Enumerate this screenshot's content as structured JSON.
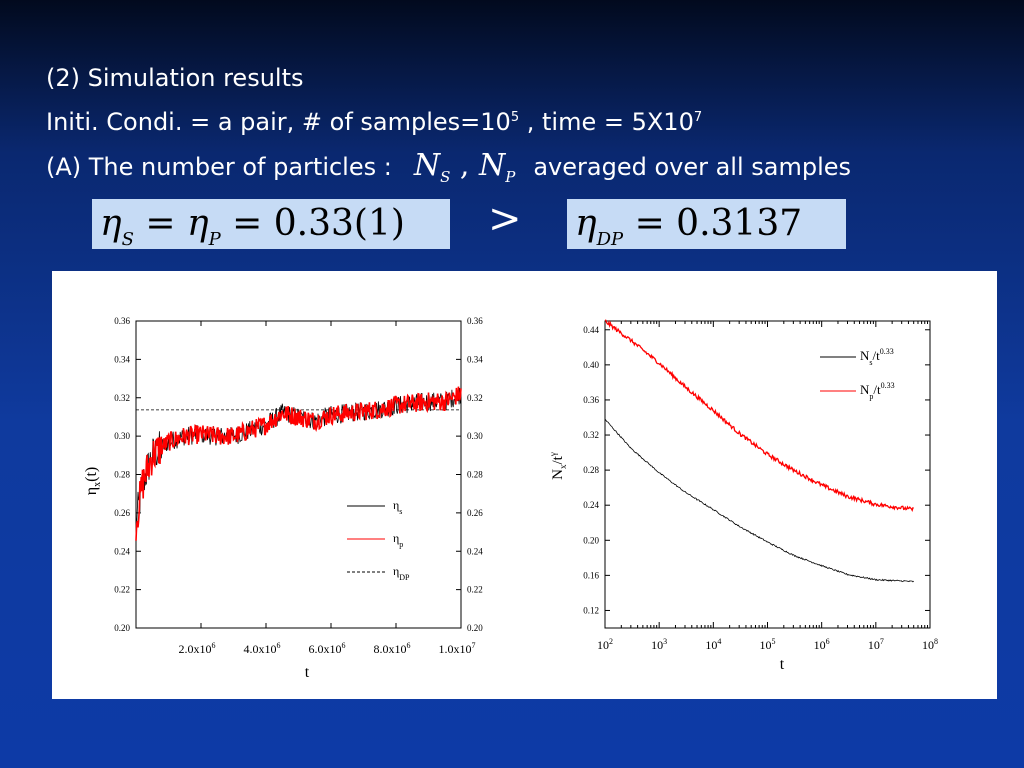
{
  "slide": {
    "line1": "(2) Simulation results",
    "line2_text": "Initi. Condi. = a pair, # of samples=10",
    "line2_sup1": "5",
    "line2_mid": " , time = 5X10",
    "line2_sup2": "7",
    "line3_prefix": "(A) The number of particles :",
    "line3_math_N": "N",
    "line3_sub_S": "S",
    "line3_comma": " , ",
    "line3_sub_P": "P",
    "line3_suffix": "averaged over all samples",
    "eq1": {
      "eta": "η",
      "sub_s": "S",
      "eq": " = ",
      "sub_p": "P",
      "value": " = 0.33(1)"
    },
    "comparator": ">",
    "eq2": {
      "eta": "η",
      "sub_dp": "DP",
      "value": " = 0.3137"
    }
  },
  "chart_data": [
    {
      "type": "line",
      "ylabel": "η_x(t)",
      "xlabel": "t",
      "xlim": [
        0,
        10000000
      ],
      "ylim": [
        0.2,
        0.36
      ],
      "y_ticks": [
        "0.20",
        "0.22",
        "0.24",
        "0.26",
        "0.28",
        "0.30",
        "0.32",
        "0.34",
        "0.36"
      ],
      "x_ticks": [
        {
          "value": 2000000,
          "mant": "2.0x10",
          "exp": "6"
        },
        {
          "value": 4000000,
          "mant": "4.0x10",
          "exp": "6"
        },
        {
          "value": 6000000,
          "mant": "6.0x10",
          "exp": "6"
        },
        {
          "value": 8000000,
          "mant": "8.0x10",
          "exp": "6"
        },
        {
          "value": 10000000,
          "mant": "1.0x10",
          "exp": "7"
        }
      ],
      "legend_position": "bottom-right",
      "legend": [
        {
          "base": "η",
          "sub": "s",
          "color": "#000000",
          "style": "solid"
        },
        {
          "base": "η",
          "sub": "p",
          "color": "#ff0000",
          "style": "solid"
        },
        {
          "base": "η",
          "sub": "DP",
          "color": "#000000",
          "style": "dashed"
        }
      ],
      "reference_line": {
        "name": "η_DP",
        "y": 0.3137
      },
      "series": [
        {
          "name": "η_s",
          "color": "#000000",
          "x": [
            0,
            200000,
            500000,
            1000000,
            1500000,
            2000000,
            2500000,
            3000000,
            3500000,
            4000000,
            4500000,
            5000000,
            5500000,
            6000000,
            6500000,
            7000000,
            7500000,
            8000000,
            8500000,
            9000000,
            9500000,
            10000000
          ],
          "y": [
            0.255,
            0.275,
            0.29,
            0.297,
            0.3,
            0.301,
            0.3,
            0.3,
            0.303,
            0.306,
            0.312,
            0.31,
            0.308,
            0.311,
            0.312,
            0.313,
            0.314,
            0.316,
            0.317,
            0.318,
            0.318,
            0.322
          ]
        },
        {
          "name": "η_p",
          "color": "#ff0000",
          "x": [
            0,
            200000,
            500000,
            1000000,
            1500000,
            2000000,
            2500000,
            3000000,
            3500000,
            4000000,
            4500000,
            5000000,
            5500000,
            6000000,
            6500000,
            7000000,
            7500000,
            8000000,
            8500000,
            9000000,
            9500000,
            10000000
          ],
          "y": [
            0.255,
            0.275,
            0.29,
            0.297,
            0.3,
            0.301,
            0.3,
            0.3,
            0.303,
            0.306,
            0.312,
            0.31,
            0.308,
            0.311,
            0.312,
            0.313,
            0.314,
            0.316,
            0.317,
            0.318,
            0.318,
            0.322
          ]
        }
      ]
    },
    {
      "type": "line",
      "x_scale": "log",
      "ylabel_base": "N",
      "ylabel_sub": "x",
      "ylabel_rest": "/t",
      "ylabel_sup": "γ",
      "xlabel": "t",
      "xlim": [
        100,
        100000000
      ],
      "ylim": [
        0.1,
        0.45
      ],
      "y_ticks": [
        "0.12",
        "0.16",
        "0.20",
        "0.24",
        "0.28",
        "0.32",
        "0.36",
        "0.40",
        "0.44"
      ],
      "x_ticks": [
        {
          "value": 100,
          "base": "10",
          "exp": "2"
        },
        {
          "value": 1000,
          "base": "10",
          "exp": "3"
        },
        {
          "value": 10000,
          "base": "10",
          "exp": "4"
        },
        {
          "value": 100000,
          "base": "10",
          "exp": "5"
        },
        {
          "value": 1000000,
          "base": "10",
          "exp": "6"
        },
        {
          "value": 10000000,
          "base": "10",
          "exp": "7"
        },
        {
          "value": 100000000,
          "base": "10",
          "exp": "8"
        }
      ],
      "legend_position": "top-right",
      "legend": [
        {
          "base": "N",
          "sub": "s",
          "rest": "/t",
          "sup": "0.33",
          "color": "#000000"
        },
        {
          "base": "N",
          "sub": "p",
          "rest": "/t",
          "sup": "0.33",
          "color": "#ff0000"
        }
      ],
      "series": [
        {
          "name": "N_s/t^0.33",
          "color": "#000000",
          "x": [
            100,
            300,
            1000,
            3000,
            10000,
            30000,
            100000,
            300000,
            1000000,
            3000000,
            10000000,
            50000000
          ],
          "y": [
            0.338,
            0.305,
            0.277,
            0.255,
            0.235,
            0.216,
            0.198,
            0.183,
            0.171,
            0.161,
            0.155,
            0.153
          ]
        },
        {
          "name": "N_p/t^0.33",
          "color": "#ff0000",
          "x": [
            100,
            300,
            1000,
            3000,
            10000,
            30000,
            100000,
            300000,
            1000000,
            3000000,
            10000000,
            50000000
          ],
          "y": [
            0.45,
            0.428,
            0.402,
            0.375,
            0.348,
            0.322,
            0.298,
            0.28,
            0.263,
            0.25,
            0.241,
            0.235
          ]
        }
      ]
    }
  ]
}
